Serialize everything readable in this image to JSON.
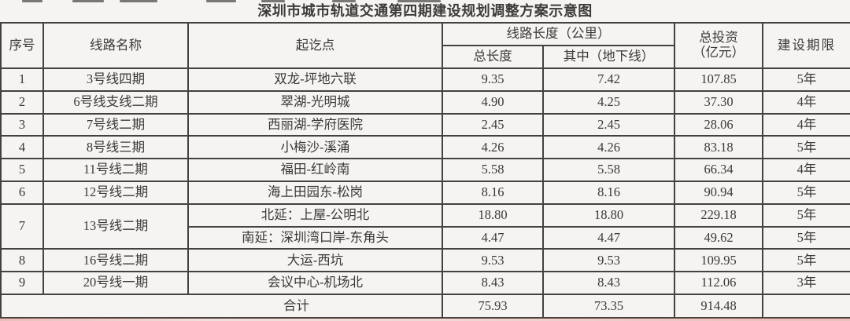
{
  "title": "深圳市城市轨道交通第四期建设规划调整方案示意图",
  "colors": {
    "background": "#f5f4f2",
    "text": "#3a3938",
    "border": "#45423e",
    "bottom_artifact_tint": "#d66e66"
  },
  "table": {
    "headers": {
      "index": "序号",
      "line_name": "线路名称",
      "endpoints": "起讫点",
      "length_group": "线路长度（公里）",
      "total_length": "总长度",
      "underground": "其中（地下线）",
      "investment_line1": "总投资",
      "investment_line2": "（亿元）",
      "period": "建设期限"
    },
    "rows": [
      {
        "no": "1",
        "line": "3号线四期",
        "endpoints": "双龙-坪地六联",
        "total_length": "9.35",
        "underground": "7.42",
        "investment": "107.85",
        "period": "5年"
      },
      {
        "no": "2",
        "line": "6号线支线二期",
        "endpoints": "翠湖-光明城",
        "total_length": "4.90",
        "underground": "4.25",
        "investment": "37.30",
        "period": "4年"
      },
      {
        "no": "3",
        "line": "7号线二期",
        "endpoints": "西丽湖-学府医院",
        "total_length": "2.45",
        "underground": "2.45",
        "investment": "28.06",
        "period": "4年"
      },
      {
        "no": "4",
        "line": "8号线三期",
        "endpoints": "小梅沙-溪涌",
        "total_length": "4.26",
        "underground": "4.26",
        "investment": "83.18",
        "period": "5年"
      },
      {
        "no": "5",
        "line": "11号线二期",
        "endpoints": "福田-红岭南",
        "total_length": "5.58",
        "underground": "5.58",
        "investment": "66.34",
        "period": "4年"
      },
      {
        "no": "6",
        "line": "12号线二期",
        "endpoints": "海上田园东-松岗",
        "total_length": "8.16",
        "underground": "8.16",
        "investment": "90.94",
        "period": "5年"
      },
      {
        "no": "7",
        "line": "13号线二期",
        "line_rowspan": 2,
        "endpoints": "北延：上屋-公明北",
        "total_length": "18.80",
        "underground": "18.80",
        "investment": "229.18",
        "period": "5年"
      },
      {
        "merged_into_above": true,
        "endpoints": "南延：深圳湾口岸-东角头",
        "total_length": "4.47",
        "underground": "4.47",
        "investment": "49.62",
        "period": "5年"
      },
      {
        "no": "8",
        "line": "16号线二期",
        "endpoints": "大运-西坑",
        "total_length": "9.53",
        "underground": "9.53",
        "investment": "109.95",
        "period": "5年"
      },
      {
        "no": "9",
        "line": "20号线一期",
        "endpoints": "会议中心-机场北",
        "total_length": "8.43",
        "underground": "8.43",
        "investment": "112.06",
        "period": "3年"
      }
    ],
    "total_row": {
      "label": "合计",
      "total_length": "75.93",
      "underground": "73.35",
      "investment": "914.48",
      "period": ""
    }
  }
}
